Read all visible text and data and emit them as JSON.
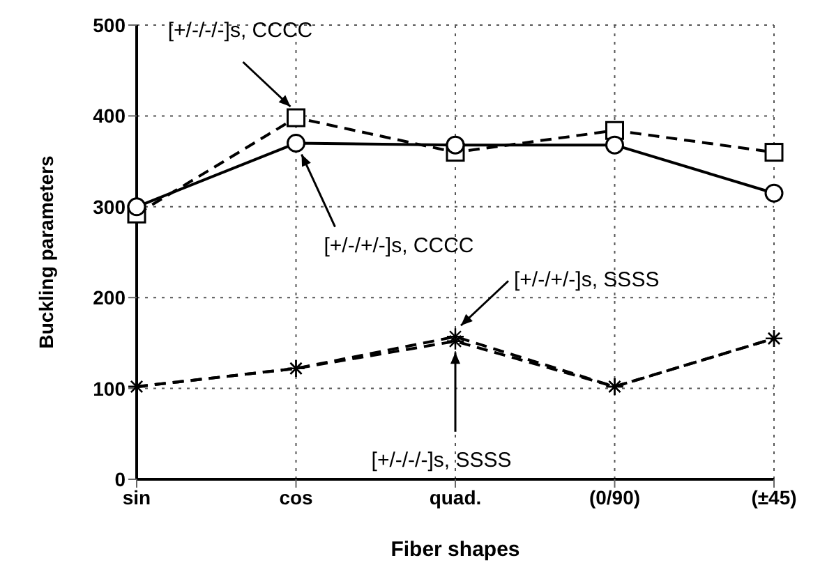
{
  "chart_data": {
    "type": "line",
    "xlabel": "Fiber shapes",
    "ylabel": "Buckling parameters",
    "categories": [
      "sin",
      "cos",
      "quad.",
      "(0/90)",
      "(±45)"
    ],
    "series": [
      {
        "color": "#000000",
        "values": [
          292,
          398,
          360,
          384,
          360
        ],
        "marker": "square",
        "line_style": "dashed"
      },
      {
        "color": "#000000",
        "values": [
          300,
          370,
          368,
          368,
          315
        ],
        "marker": "circle",
        "line_style": "solid"
      },
      {
        "color": "#000000",
        "values": [
          102,
          122,
          157,
          102,
          155
        ],
        "marker": "cross",
        "line_style": "dashed"
      },
      {
        "color": "#000000",
        "values": [
          102,
          122,
          152,
          102,
          155
        ],
        "marker": "cross",
        "line_style": "dashed"
      }
    ],
    "annotations": [
      {
        "text": "[+/-/-/-]s, CCCC",
        "x": "cos",
        "y": 398
      },
      {
        "text": "[+/-/+/-]s, CCCC",
        "x": "cos",
        "y": 370
      },
      {
        "text": "[+/-/+/-]s, SSSS",
        "x": "quad.",
        "y": 157
      },
      {
        "text": "[+/-/-/-]s, SSSS",
        "x": "quad.",
        "y": 152
      }
    ],
    "ylim": [
      0,
      500
    ],
    "yticks": [
      0,
      100,
      200,
      300,
      400,
      500
    ],
    "grid": true,
    "legend": false
  }
}
